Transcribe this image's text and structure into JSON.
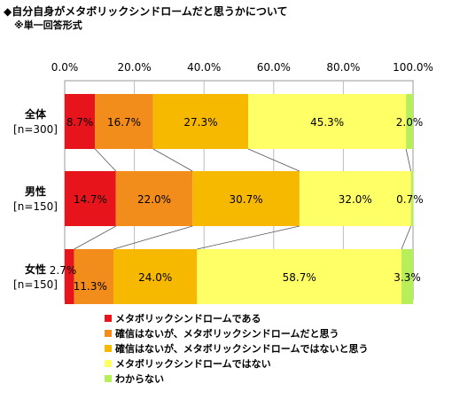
{
  "header": {
    "title": "◆自分自身がメタボリックシンドロームだと思うかについて",
    "subtitle": "※単一回答形式"
  },
  "colors": [
    "#e8141b",
    "#f28c1b",
    "#f7b800",
    "#ffff66",
    "#b6ef5a"
  ],
  "chart_data": {
    "type": "bar",
    "orientation": "horizontal",
    "stacked": true,
    "xlim": [
      0,
      100
    ],
    "x_ticks": [
      "0.0%",
      "20.0%",
      "40.0%",
      "60.0%",
      "80.0%",
      "100.0%"
    ],
    "categories": [
      {
        "name": "全体",
        "n": "[n=300]"
      },
      {
        "name": "男性",
        "n": "[n=150]"
      },
      {
        "name": "女性",
        "n": "[n=150]"
      }
    ],
    "series": [
      {
        "name": "メタボリックシンドロームである",
        "values": [
          8.7,
          14.7,
          2.7
        ],
        "labels": [
          "8.7%",
          "14.7%",
          "2.7%"
        ]
      },
      {
        "name": "確信はないが、メタボリックシンドロームだと思う",
        "values": [
          16.7,
          22.0,
          11.3
        ],
        "labels": [
          "16.7%",
          "22.0%",
          "11.3%"
        ]
      },
      {
        "name": "確信はないが、メタボリックシンドロームではないと思う",
        "values": [
          27.3,
          30.7,
          24.0
        ],
        "labels": [
          "27.3%",
          "30.7%",
          "24.0%"
        ]
      },
      {
        "name": "メタボリックシンドロームではない",
        "values": [
          45.3,
          32.0,
          58.7
        ],
        "labels": [
          "45.3%",
          "32.0%",
          "58.7%"
        ]
      },
      {
        "name": "わからない",
        "values": [
          2.0,
          0.7,
          3.3
        ],
        "labels": [
          "2.0%",
          "0.7%",
          "3.3%"
        ]
      }
    ],
    "grid": true,
    "legend_position": "bottom-left"
  }
}
